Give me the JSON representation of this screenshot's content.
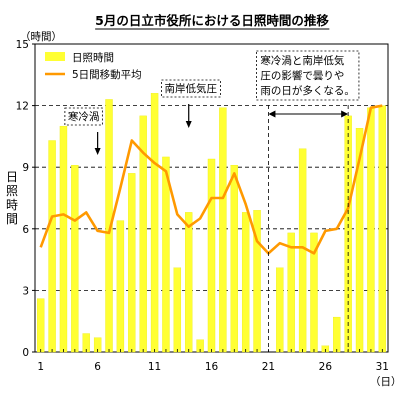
{
  "chart_data": {
    "type": "bar",
    "title": "5月の日立市役所における日照時間の推移",
    "y_unit": "（時間）",
    "x_unit": "（日）",
    "ylabel": "日照時間",
    "ylim": [
      0,
      15
    ],
    "y_ticks": [
      0,
      3,
      6,
      9,
      12,
      15
    ],
    "x_tick_labels": [
      {
        "day": 1,
        "label": "1"
      },
      {
        "day": 6,
        "label": "6"
      },
      {
        "day": 11,
        "label": "11"
      },
      {
        "day": 16,
        "label": "16"
      },
      {
        "day": 21,
        "label": "21"
      },
      {
        "day": 26,
        "label": "26"
      },
      {
        "day": 31,
        "label": "31"
      }
    ],
    "grid": "horizontal-dashed",
    "legend_position": "top-left",
    "categories": [
      1,
      2,
      3,
      4,
      5,
      6,
      7,
      8,
      9,
      10,
      11,
      12,
      13,
      14,
      15,
      16,
      17,
      18,
      19,
      20,
      21,
      22,
      23,
      24,
      25,
      26,
      27,
      28,
      29,
      30,
      31
    ],
    "series": [
      {
        "name": "日照時間",
        "kind": "bar",
        "color": "#ffff33",
        "values": [
          2.6,
          10.3,
          11.0,
          9.1,
          0.9,
          0.7,
          12.3,
          6.4,
          8.7,
          11.5,
          12.6,
          9.5,
          4.1,
          6.8,
          0.6,
          9.4,
          11.9,
          9.1,
          6.8,
          6.9,
          0.0,
          4.1,
          5.8,
          9.9,
          5.8,
          0.3,
          1.7,
          11.5,
          10.9,
          11.9,
          12.0
        ]
      },
      {
        "name": "5日間移動平均",
        "kind": "line",
        "color": "#ff9900",
        "values": [
          5.1,
          6.6,
          6.7,
          6.4,
          6.8,
          5.9,
          5.8,
          8.0,
          10.3,
          9.7,
          9.2,
          8.8,
          6.7,
          6.1,
          6.5,
          7.5,
          7.5,
          8.7,
          7.2,
          5.4,
          4.8,
          5.3,
          5.1,
          5.1,
          4.8,
          5.9,
          6.0,
          7.0,
          9.4,
          11.9,
          12.0
        ]
      }
    ],
    "annotations": [
      {
        "text": "寒冷渦",
        "arrow_day": 6
      },
      {
        "text": "南岸低気圧",
        "arrow_day": 14
      },
      {
        "text_lines": [
          "寒冷渦と南岸低気",
          "圧の影響で曇りや",
          "雨の日が多くなる。"
        ],
        "range_days": [
          21,
          28
        ]
      }
    ]
  }
}
